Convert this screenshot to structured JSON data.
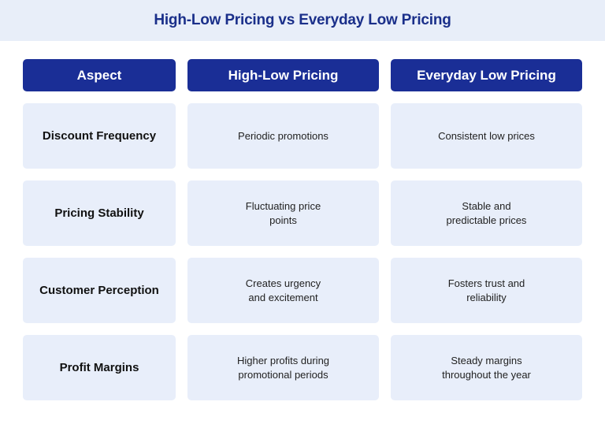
{
  "title": "High-Low Pricing vs Everyday Low Pricing",
  "headers": [
    "Aspect",
    "High-Low Pricing",
    "Everyday Low Pricing"
  ],
  "rows": [
    {
      "aspect": "Discount Frequency",
      "high_low": "Periodic promotions",
      "edlp": "Consistent low prices"
    },
    {
      "aspect": "Pricing Stability",
      "high_low": "Fluctuating price\npoints",
      "edlp": "Stable and\npredictable prices"
    },
    {
      "aspect": "Customer Perception",
      "high_low": "Creates urgency\nand excitement",
      "edlp": "Fosters trust and\nreliability"
    },
    {
      "aspect": "Profit Margins",
      "high_low": "Higher profits during\npromotional periods",
      "edlp": "Steady margins\nthroughout the year"
    }
  ]
}
